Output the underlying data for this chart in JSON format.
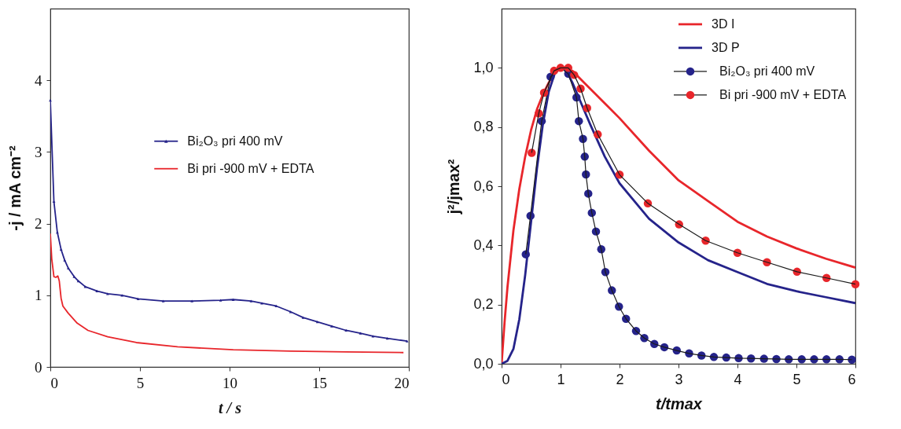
{
  "chart_data": [
    {
      "type": "line",
      "xlabel": "t / s",
      "ylabel": "-j / mA cm⁻²",
      "xlim": [
        0,
        20
      ],
      "ylim": [
        0,
        5
      ],
      "xticks": [
        0,
        5,
        10,
        15,
        20
      ],
      "yticks": [
        0,
        1,
        2,
        3,
        4
      ],
      "legend": "right",
      "series": [
        {
          "name": "Bi₂O₃ pri 400 mV",
          "color": "#25238a",
          "marker": "triangle",
          "x": [
            0,
            0.2,
            0.39,
            0.6,
            0.8,
            1.0,
            1.33,
            1.56,
            1.95,
            2.6,
            3.2,
            4.0,
            4.9,
            6.3,
            7.9,
            9.5,
            10.2,
            11.2,
            11.8,
            12.6,
            13.4,
            14.1,
            14.9,
            15.7,
            16.5,
            17.3,
            18.0,
            18.8,
            19.9
          ],
          "values": [
            3.72,
            2.31,
            1.88,
            1.64,
            1.49,
            1.38,
            1.26,
            1.2,
            1.12,
            1.06,
            1.02,
            1.0,
            0.95,
            0.92,
            0.92,
            0.93,
            0.94,
            0.92,
            0.89,
            0.85,
            0.77,
            0.69,
            0.63,
            0.57,
            0.51,
            0.47,
            0.43,
            0.4,
            0.36
          ]
        },
        {
          "name": "Bi pri -900 mV + EDTA",
          "color": "#e8262b",
          "marker": "none",
          "x": [
            0,
            0.08,
            0.2,
            0.31,
            0.42,
            0.5,
            0.6,
            0.7,
            1.0,
            1.5,
            2.1,
            3.2,
            4.8,
            7.1,
            10.2,
            13.4,
            16.5,
            19.7
          ],
          "values": [
            1.86,
            1.51,
            1.26,
            1.25,
            1.27,
            1.2,
            0.96,
            0.85,
            0.75,
            0.61,
            0.51,
            0.42,
            0.34,
            0.28,
            0.24,
            0.22,
            0.21,
            0.2
          ]
        }
      ]
    },
    {
      "type": "line",
      "xlabel": "t/tmax",
      "ylabel": "j²/jmax²",
      "xlim": [
        0,
        6
      ],
      "ylim": [
        0,
        1.2
      ],
      "xticks": [
        0,
        1,
        2,
        3,
        4,
        5,
        6
      ],
      "yticks": [
        {
          "value": 0,
          "label": "0,0"
        },
        {
          "value": 0.2,
          "label": "0,2"
        },
        {
          "value": 0.4,
          "label": "0,4"
        },
        {
          "value": 0.6,
          "label": "0,6"
        },
        {
          "value": 0.8,
          "label": "0,8"
        },
        {
          "value": 1.0,
          "label": "1,0"
        }
      ],
      "legend": "top right",
      "series": [
        {
          "name": "3D I",
          "color": "#e8262b",
          "x": [
            0,
            0.05,
            0.1,
            0.2,
            0.3,
            0.4,
            0.5,
            0.6,
            0.7,
            0.8,
            0.9,
            1.0,
            1.2,
            1.4,
            1.6,
            1.8,
            2,
            2.5,
            3,
            3.5,
            4,
            4.5,
            5,
            5.5,
            6
          ],
          "values": [
            0,
            0.14,
            0.26,
            0.45,
            0.59,
            0.7,
            0.79,
            0.86,
            0.91,
            0.95,
            0.985,
            1.0,
            0.99,
            0.95,
            0.91,
            0.87,
            0.83,
            0.72,
            0.62,
            0.55,
            0.48,
            0.43,
            0.39,
            0.355,
            0.325
          ]
        },
        {
          "name": "3D P",
          "color": "#25238a",
          "x": [
            0,
            0.1,
            0.2,
            0.3,
            0.4,
            0.5,
            0.6,
            0.7,
            0.8,
            0.9,
            1.0,
            1.1,
            1.2,
            1.35,
            1.5,
            1.75,
            2,
            2.5,
            3,
            3.5,
            4,
            4.5,
            5,
            5.5,
            6
          ],
          "values": [
            0,
            0.01,
            0.05,
            0.15,
            0.3,
            0.48,
            0.66,
            0.81,
            0.92,
            0.98,
            1.0,
            0.99,
            0.95,
            0.88,
            0.81,
            0.7,
            0.61,
            0.49,
            0.41,
            0.35,
            0.31,
            0.27,
            0.245,
            0.225,
            0.205
          ]
        },
        {
          "name": "Bi₂O₃ pri 400 mV",
          "type": "scatter",
          "marker": "circle",
          "color": "#25238a",
          "x": [
            0.41,
            0.49,
            0.68,
            0.83,
            1.0,
            1.13,
            1.27,
            1.31,
            1.38,
            1.41,
            1.43,
            1.47,
            1.53,
            1.6,
            1.69,
            1.76,
            1.87,
            1.99,
            2.11,
            2.28,
            2.42,
            2.59,
            2.76,
            2.97,
            3.18,
            3.39,
            3.6,
            3.81,
            4.02,
            4.23,
            4.45,
            4.66,
            4.87,
            5.09,
            5.3,
            5.51,
            5.73,
            5.94
          ],
          "values": [
            0.37,
            0.5,
            0.82,
            0.97,
            null,
            0.98,
            0.9,
            0.82,
            0.76,
            0.7,
            0.64,
            0.575,
            0.51,
            0.447,
            0.387,
            0.31,
            0.248,
            0.193,
            0.152,
            0.111,
            0.087,
            0.067,
            0.056,
            0.045,
            0.035,
            0.028,
            0.023,
            0.021,
            0.019,
            0.018,
            0.017,
            0.016,
            0.015,
            0.015,
            0.015,
            0.015,
            0.015,
            0.014
          ]
        },
        {
          "type": "line",
          "color": "#1a1a1a",
          "x": [
            0.41,
            0.49,
            0.68,
            0.83,
            1.0,
            1.13,
            1.27,
            1.31,
            1.38,
            1.41,
            1.43,
            1.47,
            1.53,
            1.6,
            1.69,
            1.76,
            1.87,
            1.99,
            2.11,
            2.28,
            2.42,
            2.59,
            2.76,
            2.97,
            3.18,
            3.39,
            3.6,
            3.81,
            4.02,
            4.23,
            4.45,
            4.66,
            4.87,
            5.09,
            5.3,
            5.51,
            5.73,
            5.94
          ],
          "values": [
            0.37,
            0.5,
            0.82,
            0.97,
            1.0,
            0.98,
            0.9,
            0.82,
            0.76,
            0.7,
            0.64,
            0.575,
            0.51,
            0.447,
            0.387,
            0.31,
            0.248,
            0.193,
            0.152,
            0.111,
            0.087,
            0.067,
            0.056,
            0.045,
            0.035,
            0.028,
            0.023,
            0.021,
            0.019,
            0.018,
            0.017,
            0.016,
            0.015,
            0.015,
            0.015,
            0.015,
            0.015,
            0.014
          ]
        },
        {
          "name": "Bi pri -900 mV + EDTA",
          "type": "scatter",
          "marker": "circle",
          "color": "#e8262b",
          "x": [
            0.51,
            0.63,
            0.72,
            0.89,
            1.0,
            1.13,
            1.23,
            1.34,
            1.45,
            1.63,
            2.0,
            2.48,
            3.01,
            3.46,
            4.0,
            4.5,
            5.01,
            5.51,
            6.0
          ],
          "values": [
            0.713,
            0.846,
            0.916,
            0.99,
            1.0,
            1.0,
            0.976,
            0.93,
            0.864,
            0.775,
            0.639,
            0.542,
            0.471,
            0.416,
            0.375,
            0.343,
            0.311,
            0.29,
            0.269
          ]
        },
        {
          "type": "line",
          "color": "#1a1a1a",
          "x": [
            0.51,
            0.63,
            0.72,
            0.89,
            1.0,
            1.13,
            1.23,
            1.34,
            1.45,
            1.63,
            2.0,
            2.48,
            3.01,
            3.46,
            4.0,
            4.5,
            5.01,
            5.51,
            6.0
          ],
          "values": [
            0.713,
            0.846,
            0.916,
            0.99,
            1.0,
            1.0,
            0.976,
            0.93,
            0.864,
            0.775,
            0.639,
            0.542,
            0.471,
            0.416,
            0.375,
            0.343,
            0.311,
            0.29,
            0.269
          ]
        }
      ]
    }
  ]
}
